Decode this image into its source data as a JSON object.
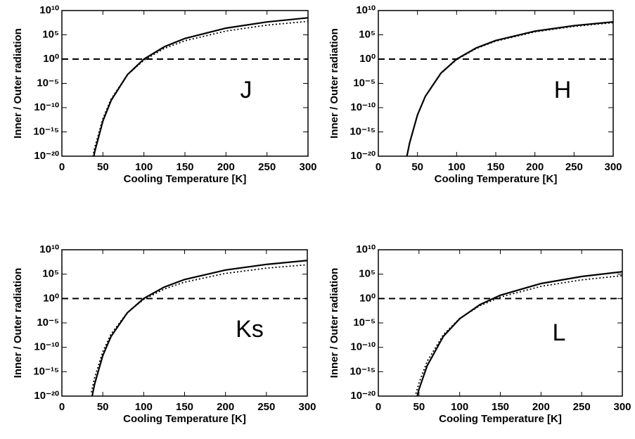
{
  "chart_data": [
    {
      "type": "line",
      "annotation": "J",
      "xlabel": "Cooling Temperature [K]",
      "ylabel": "Inner / Outer radiation",
      "log_y": true,
      "xlim": [
        0,
        300
      ],
      "ylim": [
        1e-20,
        10000000000.0
      ],
      "xticks": [
        0,
        50,
        100,
        150,
        200,
        250,
        300
      ],
      "yticks": [
        {
          "value": 1e-20,
          "label": "10⁻²⁰"
        },
        {
          "value": 1e-15,
          "label": "10⁻¹⁵"
        },
        {
          "value": 1e-10,
          "label": "10⁻¹⁰"
        },
        {
          "value": 1e-05,
          "label": "10⁻⁵"
        },
        {
          "value": 1,
          "label": "10⁰"
        },
        {
          "value": 100000.0,
          "label": "10⁵"
        },
        {
          "value": 10000000000.0,
          "label": "10¹⁰"
        }
      ],
      "reference_line": {
        "value": 1,
        "style": "dashed",
        "color": "#000000"
      },
      "x": [
        36,
        40,
        50,
        60,
        80,
        100,
        125,
        150,
        200,
        250,
        300
      ],
      "series": [
        {
          "color": "#000000",
          "style": "solid",
          "values": [
            2e-23,
            8e-20,
            1.8e-13,
            3e-09,
            0.00065,
            1,
            355,
            18000.0,
            2400000.0,
            45000000.0,
            320000000.0
          ]
        },
        {
          "color": "#000000",
          "style": "dotted",
          "values": [
            3e-22,
            6e-19,
            6e-13,
            6e-09,
            0.0006,
            0.6,
            160,
            6000.0,
            600000.0,
            10000000.0,
            60000000.0
          ]
        }
      ]
    },
    {
      "type": "line",
      "annotation": "H",
      "xlabel": "Cooling Temperature [K]",
      "ylabel": "Inner / Outer radiation",
      "log_y": true,
      "xlim": [
        0,
        300
      ],
      "ylim": [
        1e-20,
        10000000000.0
      ],
      "xticks": [
        0,
        50,
        100,
        150,
        200,
        250,
        300
      ],
      "yticks": [
        {
          "value": 1e-20,
          "label": "10⁻²⁰"
        },
        {
          "value": 1e-15,
          "label": "10⁻¹⁵"
        },
        {
          "value": 1e-10,
          "label": "10⁻¹⁰"
        },
        {
          "value": 1e-05,
          "label": "10⁻⁵"
        },
        {
          "value": 1,
          "label": "10⁰"
        },
        {
          "value": 100000.0,
          "label": "10⁵"
        },
        {
          "value": 10000000000.0,
          "label": "10¹⁰"
        }
      ],
      "reference_line": {
        "value": 1,
        "style": "dashed",
        "color": "#000000"
      },
      "x": [
        36,
        40,
        50,
        60,
        80,
        100,
        125,
        150,
        200,
        250,
        300
      ],
      "series": [
        {
          "color": "#000000",
          "style": "solid",
          "values": [
            4e-21,
            5.6e-18,
            3.2e-12,
            2.1e-08,
            0.0013,
            1,
            200,
            6800.0,
            560000.0,
            7900000.0,
            46000000.0
          ]
        },
        {
          "color": "#000000",
          "style": "dotted",
          "values": [
            4e-21,
            6e-18,
            3e-12,
            2e-08,
            0.0011,
            0.8,
            150,
            5000.0,
            400000.0,
            5500000.0,
            32000000.0
          ]
        }
      ]
    },
    {
      "type": "line",
      "annotation": "Ks",
      "xlabel": "Cooling Temperature [K]",
      "ylabel": "Inner / Outer radiation",
      "log_y": true,
      "xlim": [
        0,
        300
      ],
      "ylim": [
        1e-20,
        10000000000.0
      ],
      "xticks": [
        0,
        50,
        100,
        150,
        200,
        250,
        300
      ],
      "yticks": [
        {
          "value": 1e-20,
          "label": "10⁻²⁰"
        },
        {
          "value": 1e-15,
          "label": "10⁻¹⁵"
        },
        {
          "value": 1e-10,
          "label": "10⁻¹⁰"
        },
        {
          "value": 1e-05,
          "label": "10⁻⁵"
        },
        {
          "value": 1,
          "label": "10⁰"
        },
        {
          "value": 100000.0,
          "label": "10⁵"
        },
        {
          "value": 10000000000.0,
          "label": "10¹⁰"
        }
      ],
      "reference_line": {
        "value": 1,
        "style": "dashed",
        "color": "#000000"
      },
      "x": [
        36,
        40,
        50,
        60,
        80,
        100,
        125,
        150,
        200,
        250,
        300
      ],
      "series": [
        {
          "color": "#000000",
          "style": "solid",
          "values": [
            1.6e-21,
            2.8e-18,
            2e-12,
            1.6e-08,
            0.0012,
            1,
            220,
            8000.0,
            700000.0,
            10000000.0,
            63000000.0
          ]
        },
        {
          "color": "#000000",
          "style": "dotted",
          "values": [
            6e-20,
            5.6e-17,
            1.3e-11,
            5e-08,
            0.0013,
            0.63,
            87,
            2300.0,
            140000.0,
            1700000.0,
            8500000.0
          ]
        }
      ]
    },
    {
      "type": "line",
      "annotation": "L",
      "xlabel": "Cooling Temperature [K]",
      "ylabel": "Inner / Outer radiation",
      "log_y": true,
      "xlim": [
        0,
        300
      ],
      "ylim": [
        1e-20,
        10000000000.0
      ],
      "xticks": [
        0,
        50,
        100,
        150,
        200,
        250,
        300
      ],
      "yticks": [
        {
          "value": 1e-20,
          "label": "10⁻²⁰"
        },
        {
          "value": 1e-15,
          "label": "10⁻¹⁵"
        },
        {
          "value": 1e-10,
          "label": "10⁻¹⁰"
        },
        {
          "value": 1e-05,
          "label": "10⁻⁵"
        },
        {
          "value": 1,
          "label": "10⁰"
        },
        {
          "value": 100000.0,
          "label": "10⁵"
        },
        {
          "value": 10000000000.0,
          "label": "10¹⁰"
        }
      ],
      "reference_line": {
        "value": 1,
        "style": "dashed",
        "color": "#000000"
      },
      "x": [
        45,
        50,
        60,
        80,
        100,
        125,
        150,
        200,
        250,
        300
      ],
      "series": [
        {
          "color": "#000000",
          "style": "solid",
          "values": [
            1.6e-22,
            2.5e-19,
            1.6e-14,
            1.8e-08,
            7e-05,
            0.056,
            4.7,
            1200.0,
            33000.0,
            310000.0
          ]
        },
        {
          "color": "#000000",
          "style": "dotted",
          "values": [
            6e-21,
            5e-18,
            1.3e-13,
            4e-08,
            8e-05,
            0.035,
            2,
            316,
            6600.0,
            50000.0
          ]
        }
      ]
    }
  ]
}
